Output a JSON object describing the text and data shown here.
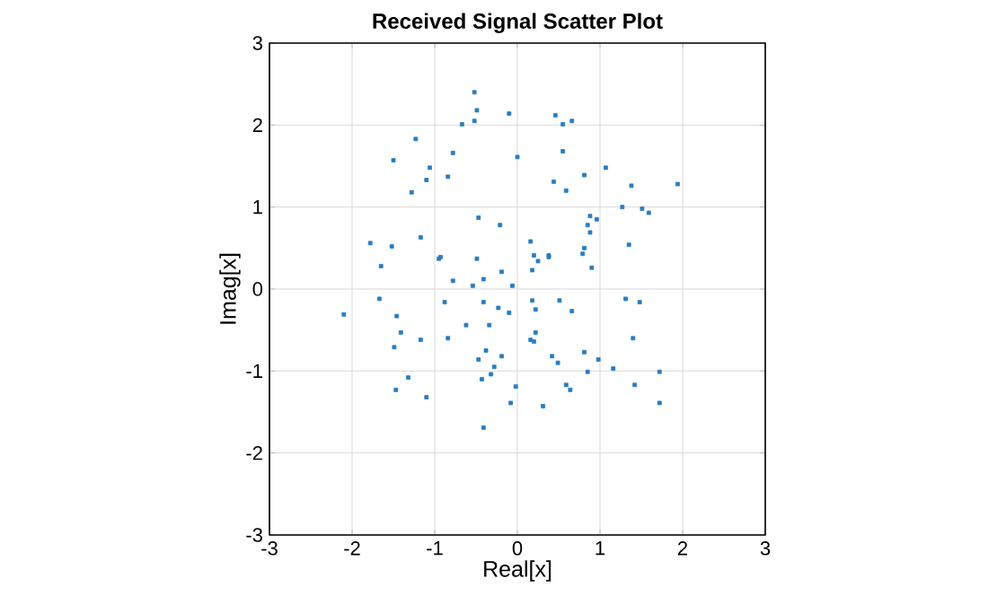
{
  "chart_data": {
    "type": "scatter",
    "title": "Received Signal Scatter Plot",
    "xlabel": "Real[x]",
    "ylabel": "Imag[x]",
    "color": "#2a7cc0",
    "marker": "square",
    "grid": true,
    "xlim": [
      -3,
      3
    ],
    "ylim": [
      -3,
      3
    ],
    "xticks": [
      -3,
      -2,
      -1,
      0,
      1,
      2,
      3
    ],
    "yticks": [
      -3,
      -2,
      -1,
      0,
      1,
      2,
      3
    ],
    "x": [
      0.46,
      0.55,
      0.66,
      0.0,
      0.55,
      0.44,
      0.59,
      0.81,
      1.07,
      1.38,
      1.94,
      1.27,
      1.51,
      1.59,
      0.88,
      0.96,
      0.85,
      0.88,
      0.16,
      1.35,
      0.2,
      0.25,
      0.38,
      0.38,
      0.81,
      0.79,
      0.9,
      0.18,
      -0.06,
      -0.52,
      -0.49,
      -0.1,
      -0.67,
      -0.52,
      -1.23,
      -0.78,
      -1.5,
      -1.06,
      -1.1,
      -0.84,
      -1.28,
      -0.47,
      -0.21,
      -1.78,
      -1.52,
      -1.17,
      -1.65,
      -0.95,
      -0.93,
      -0.49,
      -0.19,
      -0.78,
      -0.41,
      -0.54,
      -1.67,
      -2.1,
      -1.46,
      -1.41,
      -1.49,
      -1.17,
      -1.32,
      -1.47,
      -1.1,
      -0.88,
      -0.41,
      -0.23,
      -0.1,
      -0.84,
      -0.62,
      -0.34,
      -0.38,
      -0.19,
      -0.47,
      -0.28,
      -0.32,
      -0.43,
      -0.02,
      -0.08,
      -0.41,
      0.18,
      0.51,
      0.22,
      0.66,
      1.31,
      1.48,
      0.22,
      0.16,
      0.2,
      1.4,
      0.42,
      0.49,
      0.81,
      0.98,
      0.85,
      1.16,
      1.72,
      0.59,
      0.64,
      1.42,
      0.31,
      1.72
    ],
    "values": [
      2.12,
      2.01,
      2.05,
      1.61,
      1.68,
      1.31,
      1.2,
      1.39,
      1.48,
      1.26,
      1.28,
      1.0,
      0.98,
      0.93,
      0.89,
      0.85,
      0.78,
      0.69,
      0.58,
      0.54,
      0.41,
      0.34,
      0.41,
      0.39,
      0.5,
      0.43,
      0.26,
      0.23,
      0.04,
      2.4,
      2.18,
      2.14,
      2.01,
      2.05,
      1.83,
      1.66,
      1.57,
      1.48,
      1.33,
      1.37,
      1.18,
      0.87,
      0.78,
      0.56,
      0.52,
      0.63,
      0.28,
      0.37,
      0.39,
      0.37,
      0.21,
      0.1,
      0.12,
      0.04,
      -0.12,
      -0.31,
      -0.33,
      -0.53,
      -0.71,
      -0.62,
      -1.08,
      -1.23,
      -1.32,
      -0.16,
      -0.16,
      -0.23,
      -0.29,
      -0.6,
      -0.44,
      -0.44,
      -0.75,
      -0.82,
      -0.86,
      -0.95,
      -1.04,
      -1.1,
      -1.19,
      -1.39,
      -1.69,
      -0.14,
      -0.14,
      -0.25,
      -0.27,
      -0.12,
      -0.16,
      -0.53,
      -0.62,
      -0.64,
      -0.6,
      -0.82,
      -0.9,
      -0.77,
      -0.86,
      -1.01,
      -0.97,
      -1.01,
      -1.17,
      -1.23,
      -1.17,
      -1.43,
      -1.39
    ]
  }
}
